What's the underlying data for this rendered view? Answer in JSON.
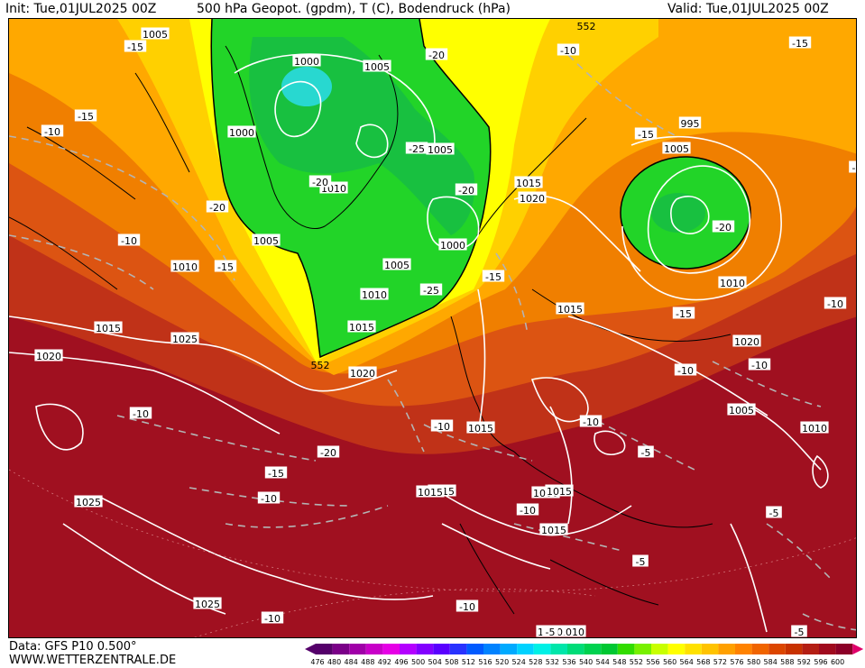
{
  "header": {
    "init_label": "Init: Tue,01JUL2025 00Z",
    "title": "500 hPa Geopot. (gpdm), T (C), Bodendruck (hPa)",
    "valid_label": "Valid: Tue,01JUL2025 00Z"
  },
  "footer": {
    "data_source": "Data: GFS P10 0.500°",
    "website": "WWW.WETTERZENTRALE.DE"
  },
  "scale": {
    "ticks": [
      "476",
      "480",
      "484",
      "488",
      "492",
      "496",
      "500",
      "504",
      "508",
      "512",
      "516",
      "520",
      "524",
      "528",
      "532",
      "536",
      "540",
      "544",
      "548",
      "552",
      "556",
      "560",
      "564",
      "568",
      "572",
      "576",
      "580",
      "584",
      "588",
      "592",
      "596",
      "600"
    ],
    "colors": [
      "#55006a",
      "#7a0088",
      "#a000a8",
      "#c800c8",
      "#e600e6",
      "#b400ff",
      "#8200ff",
      "#5a00ff",
      "#2832ff",
      "#005aff",
      "#0082ff",
      "#00aaff",
      "#00d2ff",
      "#00f0e6",
      "#00e6aa",
      "#00dc78",
      "#00d250",
      "#00c832",
      "#32dc00",
      "#78f000",
      "#c8ff00",
      "#ffff00",
      "#ffe100",
      "#ffc300",
      "#ffa000",
      "#ff8200",
      "#f06400",
      "#dc4600",
      "#c83200",
      "#b41e14",
      "#a00a1e",
      "#8c0028"
    ]
  },
  "map": {
    "colors": {
      "warm_deep": "#a01020",
      "warm": "#c83a1c",
      "orange_red": "#e05a10",
      "orange": "#f07f00",
      "light_orange": "#ffa800",
      "yellow_orange": "#ffd000",
      "yellow": "#ffff00",
      "green": "#22d428",
      "green_dark": "#18c040",
      "cyan": "#28d8d0"
    },
    "pressure_labels": [
      "1005",
      "1000",
      "1005",
      "1000",
      "1005",
      "1010",
      "1005",
      "1000",
      "1005",
      "1010",
      "1010",
      "1015",
      "1025",
      "1020",
      "1015",
      "1020",
      "1015",
      "1015",
      "1015",
      "1000",
      "995",
      "1005",
      "1010",
      "1020",
      "1015",
      "1015",
      "1010",
      "1005",
      "1010",
      "1025",
      "1025",
      "1015",
      "1015",
      "1010",
      "1020"
    ],
    "temperature_labels": [
      "-15",
      "-15",
      "-10",
      "-20",
      "-25",
      "-20",
      "-20",
      "-10",
      "-15",
      "-10",
      "-15",
      "-20",
      "-25",
      "-15",
      "-20",
      "-15",
      "-15",
      "-10",
      "-10",
      "-10",
      "-10",
      "-20",
      "-15",
      "-10",
      "-10",
      "-10",
      "-5",
      "-5",
      "-10",
      "-10",
      "-5",
      "-5",
      "-5",
      "-10",
      "-5"
    ],
    "height_labels": [
      "552",
      "552"
    ]
  }
}
